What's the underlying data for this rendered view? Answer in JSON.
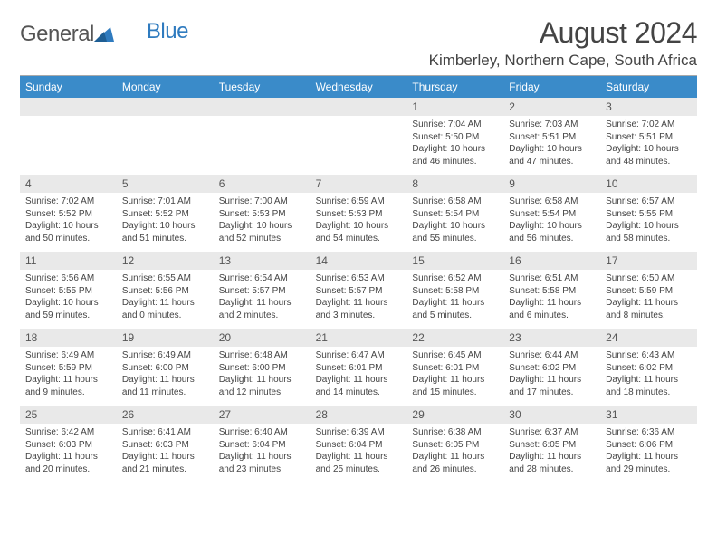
{
  "logo": {
    "word1": "General",
    "word2": "Blue"
  },
  "title": "August 2024",
  "subtitle": "Kimberley, Northern Cape, South Africa",
  "colors": {
    "header_bar": "#3a8bc9",
    "daynum_bg": "#e9e9e9",
    "text": "#444444",
    "logo_gray": "#555555",
    "logo_blue": "#2f7bbf",
    "background": "#ffffff"
  },
  "typography": {
    "title_fontsize": 32,
    "subtitle_fontsize": 17,
    "dow_fontsize": 12,
    "daynum_fontsize": 12,
    "detail_fontsize": 10
  },
  "days_of_week": [
    "Sunday",
    "Monday",
    "Tuesday",
    "Wednesday",
    "Thursday",
    "Friday",
    "Saturday"
  ],
  "weeks": [
    [
      null,
      null,
      null,
      null,
      {
        "n": "1",
        "sunrise": "Sunrise: 7:04 AM",
        "sunset": "Sunset: 5:50 PM",
        "daylight": "Daylight: 10 hours and 46 minutes."
      },
      {
        "n": "2",
        "sunrise": "Sunrise: 7:03 AM",
        "sunset": "Sunset: 5:51 PM",
        "daylight": "Daylight: 10 hours and 47 minutes."
      },
      {
        "n": "3",
        "sunrise": "Sunrise: 7:02 AM",
        "sunset": "Sunset: 5:51 PM",
        "daylight": "Daylight: 10 hours and 48 minutes."
      }
    ],
    [
      {
        "n": "4",
        "sunrise": "Sunrise: 7:02 AM",
        "sunset": "Sunset: 5:52 PM",
        "daylight": "Daylight: 10 hours and 50 minutes."
      },
      {
        "n": "5",
        "sunrise": "Sunrise: 7:01 AM",
        "sunset": "Sunset: 5:52 PM",
        "daylight": "Daylight: 10 hours and 51 minutes."
      },
      {
        "n": "6",
        "sunrise": "Sunrise: 7:00 AM",
        "sunset": "Sunset: 5:53 PM",
        "daylight": "Daylight: 10 hours and 52 minutes."
      },
      {
        "n": "7",
        "sunrise": "Sunrise: 6:59 AM",
        "sunset": "Sunset: 5:53 PM",
        "daylight": "Daylight: 10 hours and 54 minutes."
      },
      {
        "n": "8",
        "sunrise": "Sunrise: 6:58 AM",
        "sunset": "Sunset: 5:54 PM",
        "daylight": "Daylight: 10 hours and 55 minutes."
      },
      {
        "n": "9",
        "sunrise": "Sunrise: 6:58 AM",
        "sunset": "Sunset: 5:54 PM",
        "daylight": "Daylight: 10 hours and 56 minutes."
      },
      {
        "n": "10",
        "sunrise": "Sunrise: 6:57 AM",
        "sunset": "Sunset: 5:55 PM",
        "daylight": "Daylight: 10 hours and 58 minutes."
      }
    ],
    [
      {
        "n": "11",
        "sunrise": "Sunrise: 6:56 AM",
        "sunset": "Sunset: 5:55 PM",
        "daylight": "Daylight: 10 hours and 59 minutes."
      },
      {
        "n": "12",
        "sunrise": "Sunrise: 6:55 AM",
        "sunset": "Sunset: 5:56 PM",
        "daylight": "Daylight: 11 hours and 0 minutes."
      },
      {
        "n": "13",
        "sunrise": "Sunrise: 6:54 AM",
        "sunset": "Sunset: 5:57 PM",
        "daylight": "Daylight: 11 hours and 2 minutes."
      },
      {
        "n": "14",
        "sunrise": "Sunrise: 6:53 AM",
        "sunset": "Sunset: 5:57 PM",
        "daylight": "Daylight: 11 hours and 3 minutes."
      },
      {
        "n": "15",
        "sunrise": "Sunrise: 6:52 AM",
        "sunset": "Sunset: 5:58 PM",
        "daylight": "Daylight: 11 hours and 5 minutes."
      },
      {
        "n": "16",
        "sunrise": "Sunrise: 6:51 AM",
        "sunset": "Sunset: 5:58 PM",
        "daylight": "Daylight: 11 hours and 6 minutes."
      },
      {
        "n": "17",
        "sunrise": "Sunrise: 6:50 AM",
        "sunset": "Sunset: 5:59 PM",
        "daylight": "Daylight: 11 hours and 8 minutes."
      }
    ],
    [
      {
        "n": "18",
        "sunrise": "Sunrise: 6:49 AM",
        "sunset": "Sunset: 5:59 PM",
        "daylight": "Daylight: 11 hours and 9 minutes."
      },
      {
        "n": "19",
        "sunrise": "Sunrise: 6:49 AM",
        "sunset": "Sunset: 6:00 PM",
        "daylight": "Daylight: 11 hours and 11 minutes."
      },
      {
        "n": "20",
        "sunrise": "Sunrise: 6:48 AM",
        "sunset": "Sunset: 6:00 PM",
        "daylight": "Daylight: 11 hours and 12 minutes."
      },
      {
        "n": "21",
        "sunrise": "Sunrise: 6:47 AM",
        "sunset": "Sunset: 6:01 PM",
        "daylight": "Daylight: 11 hours and 14 minutes."
      },
      {
        "n": "22",
        "sunrise": "Sunrise: 6:45 AM",
        "sunset": "Sunset: 6:01 PM",
        "daylight": "Daylight: 11 hours and 15 minutes."
      },
      {
        "n": "23",
        "sunrise": "Sunrise: 6:44 AM",
        "sunset": "Sunset: 6:02 PM",
        "daylight": "Daylight: 11 hours and 17 minutes."
      },
      {
        "n": "24",
        "sunrise": "Sunrise: 6:43 AM",
        "sunset": "Sunset: 6:02 PM",
        "daylight": "Daylight: 11 hours and 18 minutes."
      }
    ],
    [
      {
        "n": "25",
        "sunrise": "Sunrise: 6:42 AM",
        "sunset": "Sunset: 6:03 PM",
        "daylight": "Daylight: 11 hours and 20 minutes."
      },
      {
        "n": "26",
        "sunrise": "Sunrise: 6:41 AM",
        "sunset": "Sunset: 6:03 PM",
        "daylight": "Daylight: 11 hours and 21 minutes."
      },
      {
        "n": "27",
        "sunrise": "Sunrise: 6:40 AM",
        "sunset": "Sunset: 6:04 PM",
        "daylight": "Daylight: 11 hours and 23 minutes."
      },
      {
        "n": "28",
        "sunrise": "Sunrise: 6:39 AM",
        "sunset": "Sunset: 6:04 PM",
        "daylight": "Daylight: 11 hours and 25 minutes."
      },
      {
        "n": "29",
        "sunrise": "Sunrise: 6:38 AM",
        "sunset": "Sunset: 6:05 PM",
        "daylight": "Daylight: 11 hours and 26 minutes."
      },
      {
        "n": "30",
        "sunrise": "Sunrise: 6:37 AM",
        "sunset": "Sunset: 6:05 PM",
        "daylight": "Daylight: 11 hours and 28 minutes."
      },
      {
        "n": "31",
        "sunrise": "Sunrise: 6:36 AM",
        "sunset": "Sunset: 6:06 PM",
        "daylight": "Daylight: 11 hours and 29 minutes."
      }
    ]
  ]
}
